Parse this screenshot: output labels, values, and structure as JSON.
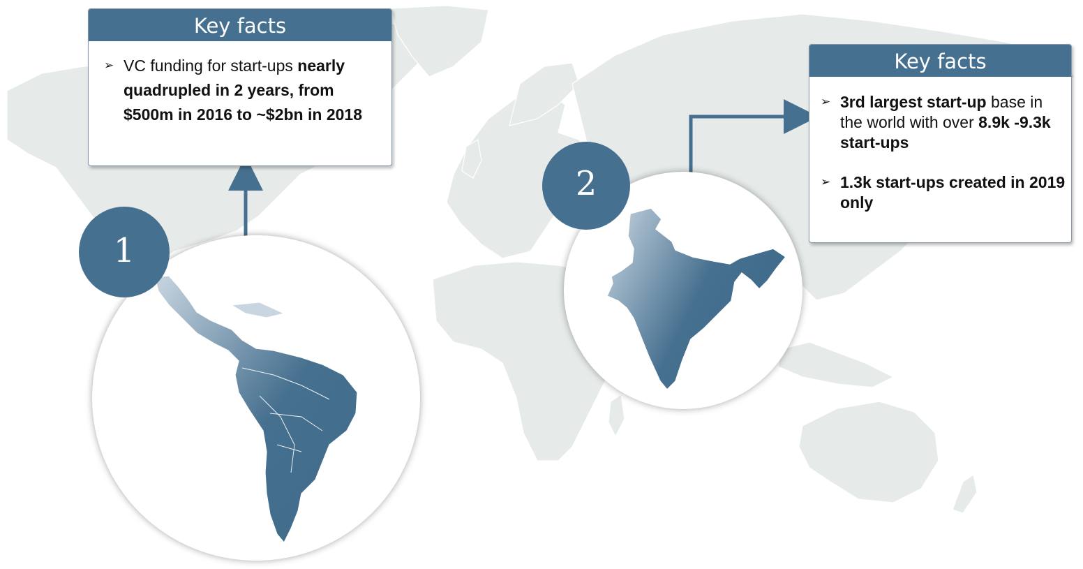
{
  "background_map": {
    "kind": "world-map",
    "land_color": "#e6ebea",
    "border_color": "#ffffff"
  },
  "accent_color": "#46708f",
  "regions": [
    {
      "badge": "1",
      "region": "Latin America",
      "facts_title": "Key facts",
      "facts": [
        {
          "parts": [
            {
              "text": "VC funding for start-ups ",
              "bold": false
            },
            {
              "text": "nearly quadrupled in 2 years, from $500m in 2016 to ~$2bn in 2018",
              "bold": true
            }
          ]
        }
      ]
    },
    {
      "badge": "2",
      "region": "India",
      "facts_title": "Key facts",
      "facts": [
        {
          "parts": [
            {
              "text": "3rd largest start-up",
              "bold": true
            },
            {
              "text": " base in the world with over ",
              "bold": false
            },
            {
              "text": "8.9k -9.3k start-ups",
              "bold": true
            }
          ]
        },
        {
          "parts": [
            {
              "text": "1.3k start-ups created in 2019 only",
              "bold": true
            }
          ]
        }
      ]
    }
  ],
  "icons": {
    "bullet": "arrowhead-bullet-icon"
  }
}
